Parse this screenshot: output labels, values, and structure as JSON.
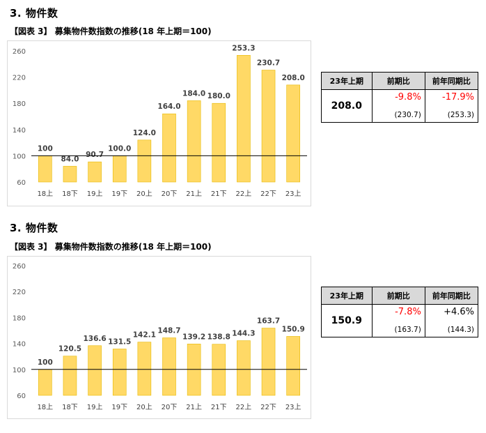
{
  "sections": [
    {
      "title": "3. 物件数",
      "caption": "【図表 3】 募集物件数指数の推移(18 年上期＝100)",
      "summary": {
        "headers": [
          "23年上期",
          "前期比",
          "前年同期比"
        ],
        "value": "208.0",
        "qoq_pct": "-9.8%",
        "qoq_prev": "(230.7)",
        "yoy_pct": "-17.9%",
        "yoy_prev": "(253.3)",
        "qoq_color": "#ff0000",
        "yoy_color": "#ff0000"
      }
    },
    {
      "title": "3. 物件数",
      "caption": "【図表 3】 募集物件数指数の推移(18 年上期＝100)",
      "summary": {
        "headers": [
          "23年上期",
          "前期比",
          "前年同期比"
        ],
        "value": "150.9",
        "qoq_pct": "-7.8%",
        "qoq_prev": "(163.7)",
        "yoy_pct": "+4.6%",
        "yoy_prev": "(144.3)",
        "qoq_color": "#ff0000",
        "yoy_color": "#000000"
      }
    }
  ],
  "chart_data": [
    {
      "type": "bar",
      "categories": [
        "18上",
        "18下",
        "19上",
        "19下",
        "20上",
        "20下",
        "21上",
        "21下",
        "22上",
        "22下",
        "23上"
      ],
      "values": [
        100,
        84.0,
        90.7,
        100.0,
        124.0,
        164.0,
        184.0,
        180.0,
        253.3,
        230.7,
        208.0
      ],
      "labels": [
        "100",
        "84.0",
        "90.7",
        "100.0",
        "124.0",
        "164.0",
        "184.0",
        "180.0",
        "253.3",
        "230.7",
        "208.0"
      ],
      "yticks": [
        60,
        100,
        140,
        180,
        220,
        260
      ],
      "ylim": [
        60,
        260
      ],
      "baseline": 100,
      "bar_color": "#ffd966",
      "bar_border": "#e6b800",
      "grid": false
    },
    {
      "type": "bar",
      "categories": [
        "18上",
        "18下",
        "19上",
        "19下",
        "20上",
        "20下",
        "21上",
        "21下",
        "22上",
        "22下",
        "23上"
      ],
      "values": [
        100,
        120.5,
        136.6,
        131.5,
        142.1,
        148.7,
        139.2,
        138.8,
        144.3,
        163.7,
        150.9
      ],
      "labels": [
        "100",
        "120.5",
        "136.6",
        "131.5",
        "142.1",
        "148.7",
        "139.2",
        "138.8",
        "144.3",
        "163.7",
        "150.9"
      ],
      "yticks": [
        60,
        100,
        140,
        180,
        220,
        260
      ],
      "ylim": [
        60,
        260
      ],
      "baseline": 100,
      "bar_color": "#ffd966",
      "bar_border": "#e6b800",
      "grid": false
    }
  ]
}
